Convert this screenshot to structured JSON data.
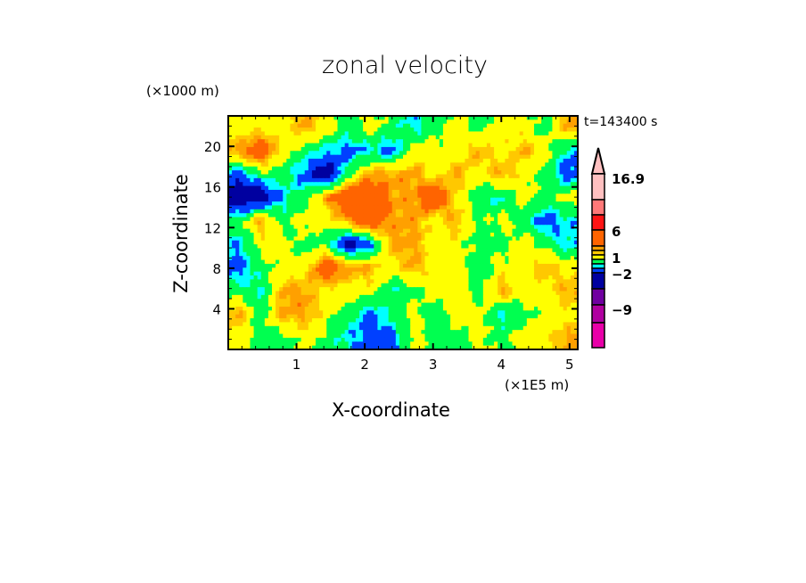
{
  "chart_data": {
    "type": "heatmap",
    "title": "zonal velocity",
    "xlabel": "X-coordinate",
    "ylabel": "Z-coordinate",
    "x_unit": "(×1E5 m)",
    "y_unit": "(×1000 m)",
    "annotation": "t=143400 s",
    "xlim": [
      0,
      5.12
    ],
    "ylim": [
      0,
      23
    ],
    "x_ticks": [
      "1",
      "2",
      "3",
      "4",
      "5"
    ],
    "y_ticks": [
      "4",
      "8",
      "12",
      "16",
      "20"
    ],
    "colorbar": {
      "tick_labels": [
        "16.9",
        "6",
        "1",
        "−2",
        "−9"
      ],
      "tick_values": [
        16.9,
        6,
        1,
        -2,
        -9
      ],
      "levels": [
        -12,
        -9,
        -6,
        -3,
        -2,
        -1.5,
        -0.5,
        0.5,
        1,
        1.5,
        6,
        9,
        12,
        16.9
      ],
      "colors": [
        "#e800a8",
        "#b000a0",
        "#7000a0",
        "#0000a0",
        "#0040ff",
        "#00ffff",
        "#00ff50",
        "#ffff00",
        "#ffc800",
        "#ffa000",
        "#ff6400",
        "#ff1414",
        "#ff7878",
        "#ffc0c0"
      ],
      "extend": "max"
    },
    "grid_note_rows_top_to_bottom": "approximate values read from figure",
    "values": [
      [
        0,
        0,
        0,
        1.2,
        0,
        -1,
        0,
        -1,
        -1.8,
        -1,
        0,
        -1,
        0,
        0,
        -1,
        1.2
      ],
      [
        1.2,
        3,
        0,
        -1,
        -1.8,
        -2.5,
        -1.8,
        -2.5,
        0,
        0,
        0,
        1.2,
        0,
        1.2,
        0,
        -1.8
      ],
      [
        -2.5,
        -1,
        -1,
        -2.5,
        -4,
        -1,
        1.2,
        1.2,
        1.2,
        0,
        1.2,
        0,
        1.2,
        0,
        -1,
        -2.5
      ],
      [
        -4,
        -4,
        -1.8,
        -1,
        1.2,
        3,
        3,
        1.2,
        1.2,
        3,
        0,
        -1,
        -1.8,
        0,
        -1,
        0
      ],
      [
        -1,
        1.2,
        -1,
        0,
        0,
        1.2,
        3,
        1.2,
        1.2,
        0,
        1.2,
        -1,
        0,
        -1,
        -2.5,
        -1.8
      ],
      [
        -1.8,
        0,
        0,
        -1,
        -1,
        -4,
        -2.5,
        1.2,
        1.2,
        0,
        0,
        -1,
        -1,
        0,
        -1,
        -1.8
      ],
      [
        -2.5,
        -1,
        0,
        0,
        3,
        1.2,
        1.2,
        0,
        1.2,
        0,
        0,
        -1,
        0,
        0,
        1.2,
        0
      ],
      [
        -1,
        -1.8,
        1.2,
        1.2,
        0,
        0,
        0,
        -1.8,
        -1,
        0,
        0,
        -1,
        1.2,
        0,
        0,
        1.2
      ],
      [
        1.2,
        -1,
        1.2,
        1.2,
        0,
        -1,
        -2.5,
        -1,
        0,
        -1,
        0,
        0,
        -1.8,
        -1,
        0,
        0
      ],
      [
        0,
        -1,
        -1,
        0,
        -1,
        -1.8,
        -2.5,
        -2.5,
        0,
        -1,
        -1,
        0,
        -1,
        0,
        0,
        1.2
      ]
    ]
  }
}
